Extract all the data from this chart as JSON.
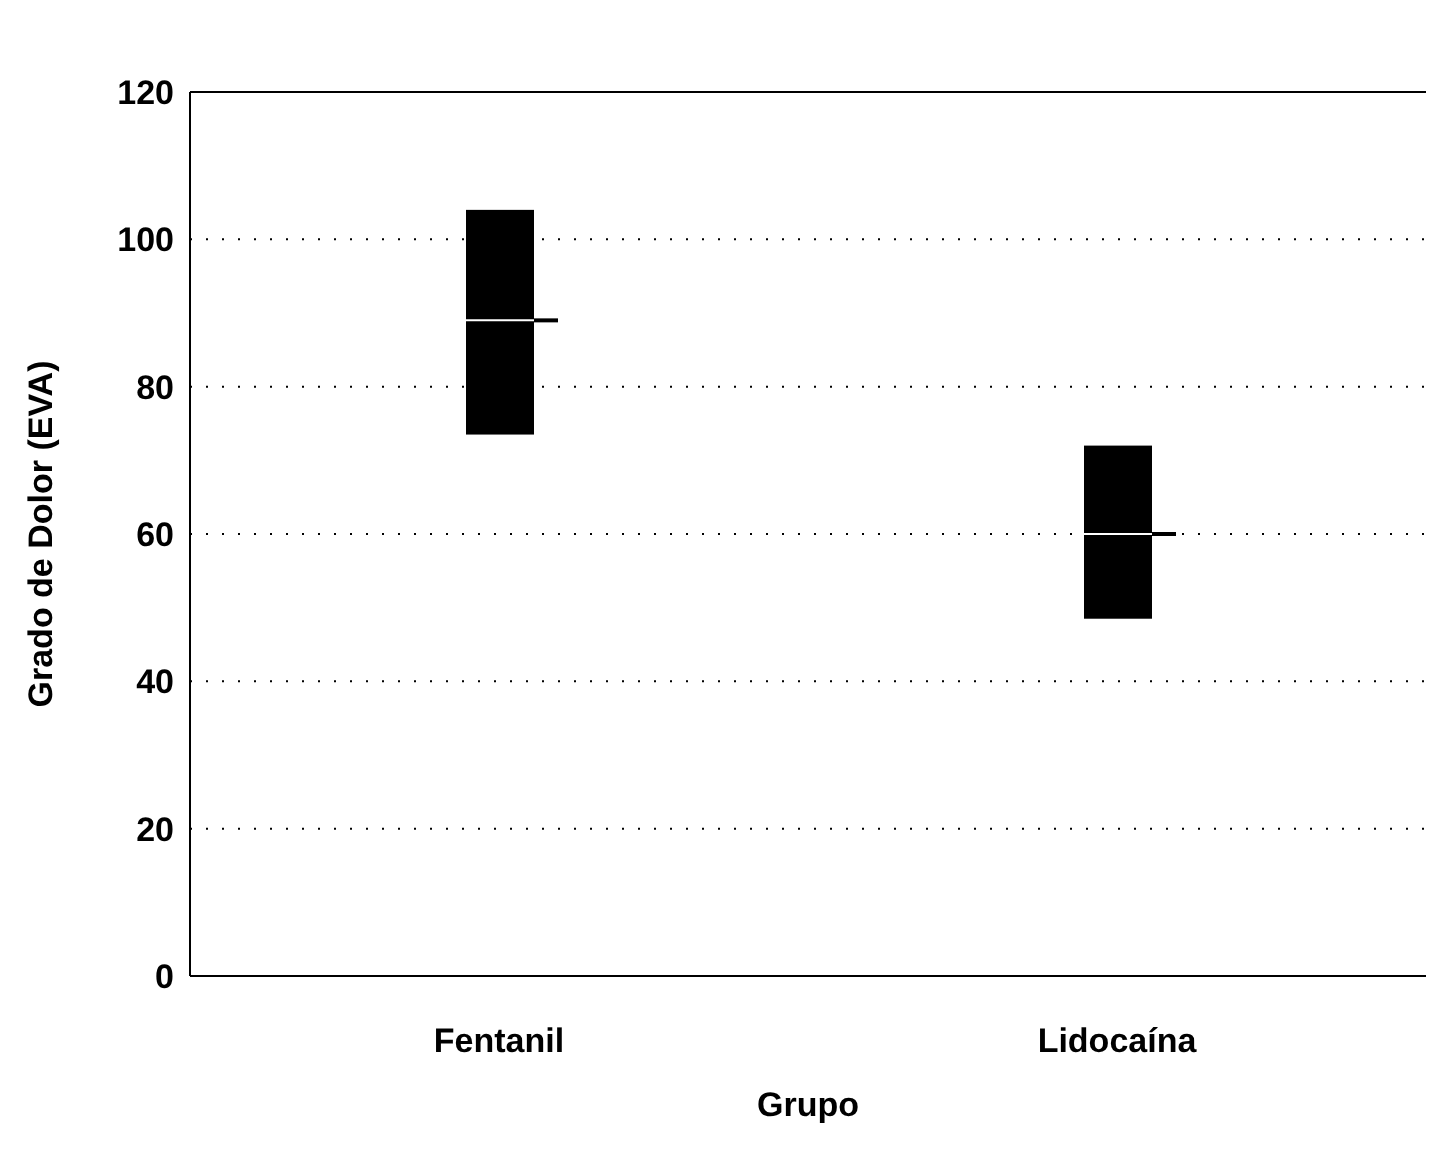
{
  "chart_data": {
    "type": "box",
    "xlabel": "Grupo",
    "ylabel": "Grado de Dolor (EVA)",
    "categories": [
      "Fentanil",
      "Lidocaína"
    ],
    "boxes": [
      {
        "low": 73.5,
        "q1": 73.5,
        "median": 89,
        "q3": 104,
        "high": 104
      },
      {
        "low": 48.5,
        "q1": 48.5,
        "median": 60,
        "q3": 72,
        "high": 72
      }
    ],
    "color": "#000000",
    "ylim": [
      0,
      120
    ],
    "yticks": [
      0,
      20,
      40,
      60,
      80,
      100,
      120
    ],
    "grid": "y"
  }
}
